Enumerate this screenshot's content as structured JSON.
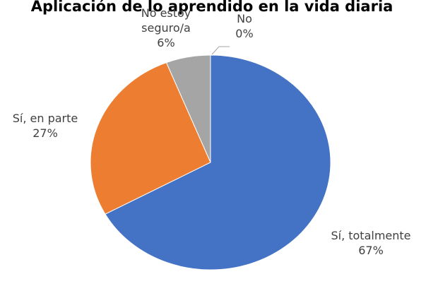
{
  "chart_data": {
    "type": "pie",
    "title": "Aplicación de lo aprendido en la vida diaria",
    "categories": [
      "Sí, totalmente",
      "Sí, en parte",
      "No estoy seguro/a",
      "No"
    ],
    "values": [
      67,
      27,
      6,
      0
    ],
    "value_labels": [
      "67%",
      "27%",
      "6%",
      "0%"
    ],
    "colors": [
      "#4472c4",
      "#ed7d31",
      "#a5a5a5",
      "#ffc000"
    ]
  }
}
